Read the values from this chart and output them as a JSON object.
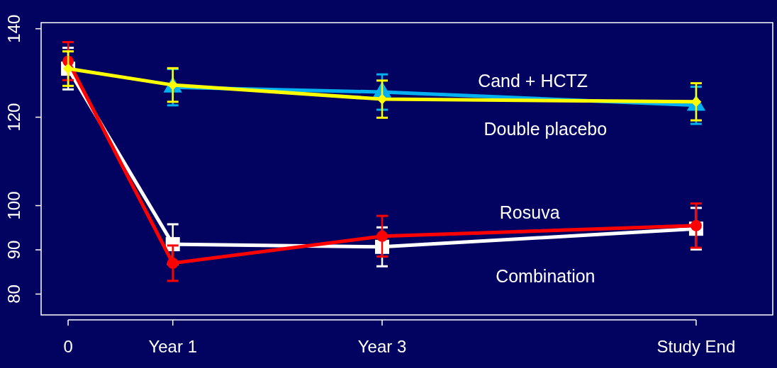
{
  "chart_data": {
    "type": "line",
    "categories": [
      "0",
      "Year 1",
      "Year 3",
      "Study End"
    ],
    "ylim": [
      75.2,
      141.3
    ],
    "yticks": [
      80,
      90,
      100,
      120,
      140
    ],
    "grid": false,
    "line_style": "solid",
    "series": [
      {
        "name": "Double placebo",
        "color": "#00b0f0",
        "marker": "triangle",
        "values": [
          null,
          126.7,
          125.6,
          122.6
        ],
        "errors": [
          null,
          4.1,
          4,
          4.2
        ]
      },
      {
        "name": "Cand + HCTZ",
        "color": "#ffff00",
        "marker": "diamond",
        "values": [
          130.9,
          127.2,
          124,
          123.4
        ],
        "errors": [
          3.9,
          3.8,
          4.2,
          4.2
        ]
      },
      {
        "name": "Combination",
        "color": "#ffffff",
        "marker": "square",
        "values": [
          130.9,
          91.2,
          90.6,
          94.7
        ],
        "errors": [
          4.7,
          4.5,
          4.4,
          4.7
        ]
      },
      {
        "name": "Rosuva",
        "color": "#ff0000",
        "marker": "circle",
        "values": [
          132.6,
          86.9,
          93,
          95.4
        ],
        "errors": [
          4.3,
          4,
          4.6,
          5
        ]
      }
    ]
  }
}
